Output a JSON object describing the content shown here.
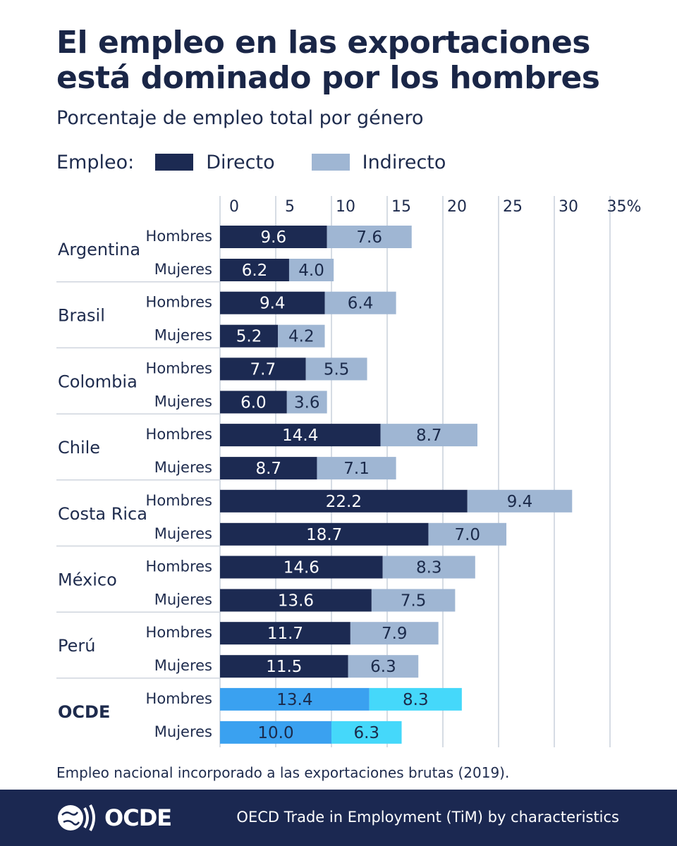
{
  "header": {
    "title": "El empleo en las exportaciones está dominado por los hombres",
    "subtitle": "Porcentaje de empleo total por género"
  },
  "legend": {
    "title": "Empleo:",
    "items": [
      {
        "label": "Directo",
        "color": "#1c2a52"
      },
      {
        "label": "Indirecto",
        "color": "#9fb6d3"
      }
    ]
  },
  "colors": {
    "direct": "#1c2a52",
    "indirect": "#9fb6d3",
    "oecd_direct": "#3aa1f0",
    "oecd_indirect": "#45d8fa",
    "grid": "#c9d1dc",
    "separator": "#cfd5de"
  },
  "chart_data": {
    "type": "bar",
    "orientation": "horizontal",
    "stacked": true,
    "xlim": [
      0,
      35
    ],
    "x_ticks": [
      "0",
      "5",
      "10",
      "15",
      "20",
      "25",
      "30",
      "35%"
    ],
    "row_labels": [
      "Hombres",
      "Mujeres"
    ],
    "series": [
      {
        "name": "Directo"
      },
      {
        "name": "Indirecto"
      }
    ],
    "groups": [
      {
        "country": "Argentina",
        "bold": false,
        "rows": [
          {
            "label": "Hombres",
            "direct": 9.6,
            "direct_label": "9.6",
            "indirect": 7.6,
            "indirect_label": "7.6"
          },
          {
            "label": "Mujeres",
            "direct": 6.2,
            "direct_label": "6.2",
            "indirect": 4.0,
            "indirect_label": "4.0"
          }
        ]
      },
      {
        "country": "Brasil",
        "bold": false,
        "rows": [
          {
            "label": "Hombres",
            "direct": 9.4,
            "direct_label": "9.4",
            "indirect": 6.4,
            "indirect_label": "6.4"
          },
          {
            "label": "Mujeres",
            "direct": 5.2,
            "direct_label": "5.2",
            "indirect": 4.2,
            "indirect_label": "4.2"
          }
        ]
      },
      {
        "country": "Colombia",
        "bold": false,
        "rows": [
          {
            "label": "Hombres",
            "direct": 7.7,
            "direct_label": "7.7",
            "indirect": 5.5,
            "indirect_label": "5.5"
          },
          {
            "label": "Mujeres",
            "direct": 6.0,
            "direct_label": "6.0",
            "indirect": 3.6,
            "indirect_label": "3.6"
          }
        ]
      },
      {
        "country": "Chile",
        "bold": false,
        "rows": [
          {
            "label": "Hombres",
            "direct": 14.4,
            "direct_label": "14.4",
            "indirect": 8.7,
            "indirect_label": "8.7"
          },
          {
            "label": "Mujeres",
            "direct": 8.7,
            "direct_label": "8.7",
            "indirect": 7.1,
            "indirect_label": "7.1"
          }
        ]
      },
      {
        "country": "Costa Rica",
        "bold": false,
        "rows": [
          {
            "label": "Hombres",
            "direct": 22.2,
            "direct_label": "22.2",
            "indirect": 9.4,
            "indirect_label": "9.4"
          },
          {
            "label": "Mujeres",
            "direct": 18.7,
            "direct_label": "18.7",
            "indirect": 7.0,
            "indirect_label": "7.0"
          }
        ]
      },
      {
        "country": "México",
        "bold": false,
        "rows": [
          {
            "label": "Hombres",
            "direct": 14.6,
            "direct_label": "14.6",
            "indirect": 8.3,
            "indirect_label": "8.3"
          },
          {
            "label": "Mujeres",
            "direct": 13.6,
            "direct_label": "13.6",
            "indirect": 7.5,
            "indirect_label": "7.5"
          }
        ]
      },
      {
        "country": "Perú",
        "bold": false,
        "rows": [
          {
            "label": "Hombres",
            "direct": 11.7,
            "direct_label": "11.7",
            "indirect": 7.9,
            "indirect_label": "7.9"
          },
          {
            "label": "Mujeres",
            "direct": 11.5,
            "direct_label": "11.5",
            "indirect": 6.3,
            "indirect_label": "6.3"
          }
        ]
      },
      {
        "country": "OCDE",
        "bold": true,
        "highlight": true,
        "rows": [
          {
            "label": "Hombres",
            "direct": 13.4,
            "direct_label": "13.4",
            "indirect": 8.3,
            "indirect_label": "8.3"
          },
          {
            "label": "Mujeres",
            "direct": 10.0,
            "direct_label": "10.0",
            "indirect": 6.3,
            "indirect_label": "6.3"
          }
        ]
      }
    ]
  },
  "footnote": "Empleo nacional incorporado a las exportaciones brutas (2019).",
  "footer": {
    "logo_text": "OCDE",
    "source": "OECD Trade in Employment (TiM) by characteristics"
  }
}
